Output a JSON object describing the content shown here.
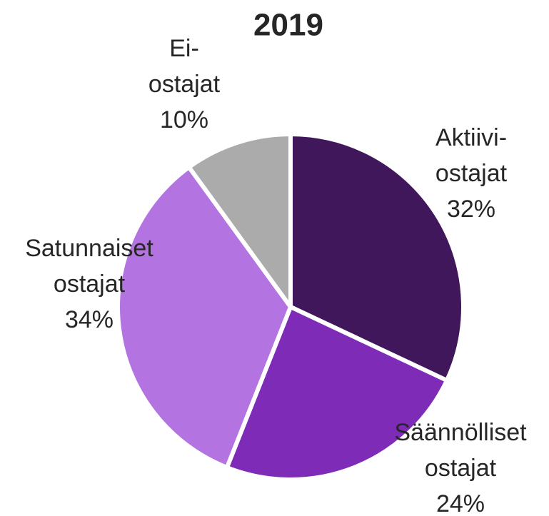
{
  "chart_data": {
    "type": "pie",
    "title": "2019",
    "categories": [
      [
        "Aktiivi-",
        "ostajat"
      ],
      [
        "Säännölliset",
        "ostajat"
      ],
      [
        "Satunnaiset",
        "ostajat"
      ],
      [
        "Ei-",
        "ostajat"
      ]
    ],
    "values": [
      32,
      24,
      34,
      10
    ],
    "value_labels": [
      "32%",
      "24%",
      "34%",
      "10%"
    ],
    "colors": [
      "#41175c",
      "#7e2bb8",
      "#b373e0",
      "#ababab"
    ]
  }
}
